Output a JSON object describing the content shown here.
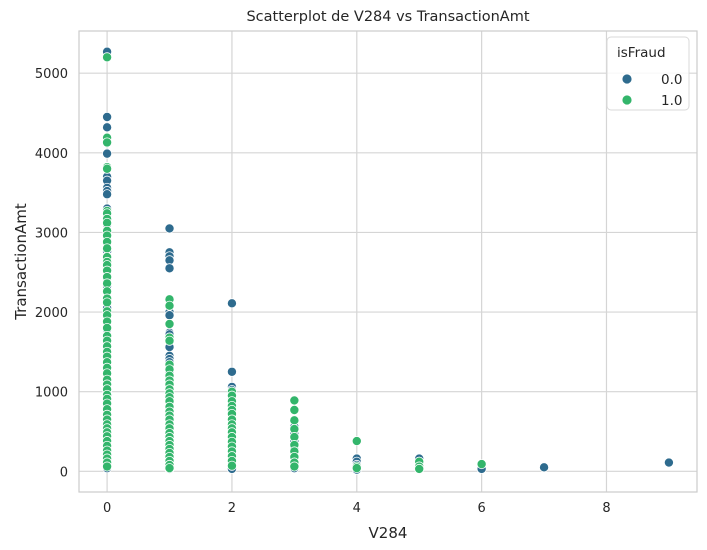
{
  "chart_data": {
    "type": "scatter",
    "title": "Scatterplot de V284 vs TransactionAmt",
    "xlabel": "V284",
    "ylabel": "TransactionAmt",
    "xlim": [
      -0.45,
      9.45
    ],
    "ylim": [
      -260,
      5530
    ],
    "xticks": [
      0,
      2,
      4,
      6,
      8
    ],
    "yticks": [
      0,
      1000,
      2000,
      3000,
      4000,
      5000
    ],
    "grid": true,
    "legend": {
      "title": "isFraud",
      "placement": "top-right"
    },
    "series": [
      {
        "name": "0.0",
        "color": "#2e6b8e",
        "points": [
          [
            0,
            5270
          ],
          [
            0,
            4450
          ],
          [
            0,
            4320
          ],
          [
            0,
            4180
          ],
          [
            0,
            3990
          ],
          [
            0,
            3820
          ],
          [
            0,
            3700
          ],
          [
            0,
            3650
          ],
          [
            0,
            3560
          ],
          [
            0,
            3520
          ],
          [
            0,
            3480
          ],
          [
            0,
            3300
          ],
          [
            0,
            3220
          ],
          [
            0,
            3100
          ],
          [
            0,
            2950
          ],
          [
            0,
            2900
          ],
          [
            0,
            2760
          ],
          [
            0,
            2700
          ],
          [
            0,
            2560
          ],
          [
            0,
            2420
          ],
          [
            0,
            2330
          ],
          [
            0,
            2100
          ],
          [
            0,
            2050
          ],
          [
            0,
            1870
          ],
          [
            0,
            1780
          ],
          [
            0,
            1560
          ],
          [
            0,
            1420
          ],
          [
            0,
            1320
          ],
          [
            0,
            1150
          ],
          [
            0,
            980
          ],
          [
            0,
            880
          ],
          [
            0,
            720
          ],
          [
            0,
            620
          ],
          [
            0,
            520
          ],
          [
            0,
            420
          ],
          [
            0,
            330
          ],
          [
            0,
            250
          ],
          [
            0,
            180
          ],
          [
            0,
            120
          ],
          [
            0,
            70
          ],
          [
            0,
            40
          ],
          [
            1,
            3050
          ],
          [
            1,
            2750
          ],
          [
            1,
            2700
          ],
          [
            1,
            2650
          ],
          [
            1,
            2550
          ],
          [
            1,
            2080
          ],
          [
            1,
            2000
          ],
          [
            1,
            1960
          ],
          [
            1,
            1850
          ],
          [
            1,
            1740
          ],
          [
            1,
            1720
          ],
          [
            1,
            1670
          ],
          [
            1,
            1630
          ],
          [
            1,
            1560
          ],
          [
            1,
            1450
          ],
          [
            1,
            1410
          ],
          [
            1,
            1370
          ],
          [
            1,
            1300
          ],
          [
            1,
            1240
          ],
          [
            1,
            1200
          ],
          [
            1,
            1150
          ],
          [
            1,
            1040
          ],
          [
            1,
            980
          ],
          [
            1,
            900
          ],
          [
            1,
            820
          ],
          [
            1,
            760
          ],
          [
            1,
            700
          ],
          [
            1,
            600
          ],
          [
            1,
            520
          ],
          [
            1,
            430
          ],
          [
            1,
            350
          ],
          [
            1,
            280
          ],
          [
            1,
            210
          ],
          [
            1,
            150
          ],
          [
            1,
            100
          ],
          [
            1,
            60
          ],
          [
            1,
            30
          ],
          [
            2,
            2110
          ],
          [
            2,
            1250
          ],
          [
            2,
            1060
          ],
          [
            2,
            1020
          ],
          [
            2,
            960
          ],
          [
            2,
            900
          ],
          [
            2,
            830
          ],
          [
            2,
            760
          ],
          [
            2,
            700
          ],
          [
            2,
            600
          ],
          [
            2,
            520
          ],
          [
            2,
            420
          ],
          [
            2,
            330
          ],
          [
            2,
            240
          ],
          [
            2,
            170
          ],
          [
            2,
            110
          ],
          [
            2,
            60
          ],
          [
            2,
            30
          ],
          [
            3,
            640
          ],
          [
            3,
            560
          ],
          [
            3,
            470
          ],
          [
            3,
            380
          ],
          [
            3,
            300
          ],
          [
            3,
            230
          ],
          [
            3,
            170
          ],
          [
            3,
            120
          ],
          [
            3,
            80
          ],
          [
            3,
            40
          ],
          [
            4,
            160
          ],
          [
            4,
            120
          ],
          [
            4,
            80
          ],
          [
            4,
            50
          ],
          [
            4,
            20
          ],
          [
            5,
            160
          ],
          [
            5,
            120
          ],
          [
            5,
            90
          ],
          [
            5,
            60
          ],
          [
            5,
            30
          ],
          [
            6,
            60
          ],
          [
            6,
            30
          ],
          [
            7,
            50
          ],
          [
            9,
            110
          ]
        ]
      },
      {
        "name": "1.0",
        "color": "#33b56b",
        "points": [
          [
            0,
            5200
          ],
          [
            0,
            4190
          ],
          [
            0,
            4130
          ],
          [
            0,
            3820
          ],
          [
            0,
            3800
          ],
          [
            0,
            3270
          ],
          [
            0,
            3240
          ],
          [
            0,
            3170
          ],
          [
            0,
            3120
          ],
          [
            0,
            3020
          ],
          [
            0,
            2960
          ],
          [
            0,
            2880
          ],
          [
            0,
            2800
          ],
          [
            0,
            2690
          ],
          [
            0,
            2630
          ],
          [
            0,
            2590
          ],
          [
            0,
            2520
          ],
          [
            0,
            2440
          ],
          [
            0,
            2360
          ],
          [
            0,
            2260
          ],
          [
            0,
            2170
          ],
          [
            0,
            2120
          ],
          [
            0,
            2010
          ],
          [
            0,
            1960
          ],
          [
            0,
            1880
          ],
          [
            0,
            1800
          ],
          [
            0,
            1700
          ],
          [
            0,
            1640
          ],
          [
            0,
            1570
          ],
          [
            0,
            1500
          ],
          [
            0,
            1440
          ],
          [
            0,
            1370
          ],
          [
            0,
            1300
          ],
          [
            0,
            1230
          ],
          [
            0,
            1150
          ],
          [
            0,
            1090
          ],
          [
            0,
            1030
          ],
          [
            0,
            960
          ],
          [
            0,
            910
          ],
          [
            0,
            850
          ],
          [
            0,
            780
          ],
          [
            0,
            710
          ],
          [
            0,
            650
          ],
          [
            0,
            590
          ],
          [
            0,
            540
          ],
          [
            0,
            490
          ],
          [
            0,
            440
          ],
          [
            0,
            380
          ],
          [
            0,
            320
          ],
          [
            0,
            260
          ],
          [
            0,
            210
          ],
          [
            0,
            160
          ],
          [
            0,
            110
          ],
          [
            0,
            60
          ],
          [
            1,
            2160
          ],
          [
            1,
            2080
          ],
          [
            1,
            1850
          ],
          [
            1,
            1680
          ],
          [
            1,
            1640
          ],
          [
            1,
            1340
          ],
          [
            1,
            1280
          ],
          [
            1,
            1200
          ],
          [
            1,
            1140
          ],
          [
            1,
            1090
          ],
          [
            1,
            1030
          ],
          [
            1,
            980
          ],
          [
            1,
            930
          ],
          [
            1,
            880
          ],
          [
            1,
            810
          ],
          [
            1,
            750
          ],
          [
            1,
            700
          ],
          [
            1,
            650
          ],
          [
            1,
            590
          ],
          [
            1,
            540
          ],
          [
            1,
            480
          ],
          [
            1,
            430
          ],
          [
            1,
            380
          ],
          [
            1,
            330
          ],
          [
            1,
            280
          ],
          [
            1,
            230
          ],
          [
            1,
            180
          ],
          [
            1,
            130
          ],
          [
            1,
            80
          ],
          [
            1,
            40
          ],
          [
            2,
            1000
          ],
          [
            2,
            950
          ],
          [
            2,
            880
          ],
          [
            2,
            820
          ],
          [
            2,
            770
          ],
          [
            2,
            720
          ],
          [
            2,
            650
          ],
          [
            2,
            590
          ],
          [
            2,
            540
          ],
          [
            2,
            490
          ],
          [
            2,
            430
          ],
          [
            2,
            370
          ],
          [
            2,
            310
          ],
          [
            2,
            250
          ],
          [
            2,
            190
          ],
          [
            2,
            130
          ],
          [
            2,
            70
          ],
          [
            3,
            890
          ],
          [
            3,
            770
          ],
          [
            3,
            640
          ],
          [
            3,
            530
          ],
          [
            3,
            430
          ],
          [
            3,
            330
          ],
          [
            3,
            250
          ],
          [
            3,
            180
          ],
          [
            3,
            110
          ],
          [
            3,
            60
          ],
          [
            4,
            380
          ],
          [
            4,
            60
          ],
          [
            4,
            40
          ],
          [
            5,
            120
          ],
          [
            5,
            60
          ],
          [
            5,
            30
          ],
          [
            6,
            90
          ]
        ]
      }
    ]
  }
}
